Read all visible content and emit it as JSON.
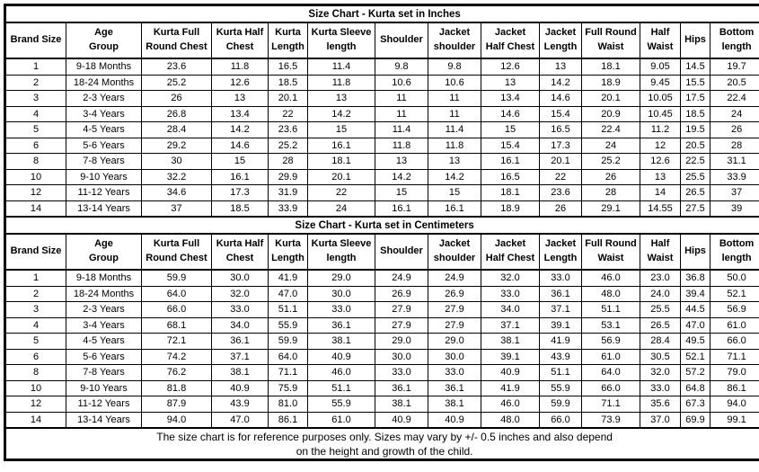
{
  "page": {
    "background_color": "#ffffff",
    "border_color": "#000000"
  },
  "tables": [
    {
      "id": "inches",
      "title": "Size Chart - Kurta set in Inches",
      "column_headers": [
        "Brand Size",
        "Age\nGroup",
        "Kurta Full\nRound Chest",
        "Kurta Half\nChest",
        "Kurta\nLength",
        "Kurta Sleeve\nlength",
        "Shoulder",
        "Jacket\nshoulder",
        "Jacket\nHalf Chest",
        "Jacket\nLength",
        "Full Round\nWaist",
        "Half\nWaist",
        "Hips",
        "Bottom\nlength"
      ],
      "rows": [
        [
          "1",
          "9-18 Months",
          "23.6",
          "11.8",
          "16.5",
          "11.4",
          "9.8",
          "9.8",
          "12.6",
          "13",
          "18.1",
          "9.05",
          "14.5",
          "19.7"
        ],
        [
          "2",
          "18-24 Months",
          "25.2",
          "12.6",
          "18.5",
          "11.8",
          "10.6",
          "10.6",
          "13",
          "14.2",
          "18.9",
          "9.45",
          "15.5",
          "20.5"
        ],
        [
          "3",
          "2-3 Years",
          "26",
          "13",
          "20.1",
          "13",
          "11",
          "11",
          "13.4",
          "14.6",
          "20.1",
          "10.05",
          "17.5",
          "22.4"
        ],
        [
          "4",
          "3-4 Years",
          "26.8",
          "13.4",
          "22",
          "14.2",
          "11",
          "11",
          "14.6",
          "15.4",
          "20.9",
          "10.45",
          "18.5",
          "24"
        ],
        [
          "5",
          "4-5 Years",
          "28.4",
          "14.2",
          "23.6",
          "15",
          "11.4",
          "11.4",
          "15",
          "16.5",
          "22.4",
          "11.2",
          "19.5",
          "26"
        ],
        [
          "6",
          "5-6 Years",
          "29.2",
          "14.6",
          "25.2",
          "16.1",
          "11.8",
          "11.8",
          "15.4",
          "17.3",
          "24",
          "12",
          "20.5",
          "28"
        ],
        [
          "8",
          "7-8 Years",
          "30",
          "15",
          "28",
          "18.1",
          "13",
          "13",
          "16.1",
          "20.1",
          "25.2",
          "12.6",
          "22.5",
          "31.1"
        ],
        [
          "10",
          "9-10 Years",
          "32.2",
          "16.1",
          "29.9",
          "20.1",
          "14.2",
          "14.2",
          "16.5",
          "22",
          "26",
          "13",
          "25.5",
          "33.9"
        ],
        [
          "12",
          "11-12 Years",
          "34.6",
          "17.3",
          "31.9",
          "22",
          "15",
          "15",
          "18.1",
          "23.6",
          "28",
          "14",
          "26.5",
          "37"
        ],
        [
          "14",
          "13-14 Years",
          "37",
          "18.5",
          "33.9",
          "24",
          "16.1",
          "16.1",
          "18.9",
          "26",
          "29.1",
          "14.55",
          "27.5",
          "39"
        ]
      ]
    },
    {
      "id": "centimeters",
      "title": "Size Chart - Kurta set in Centimeters",
      "column_headers": [
        "Brand Size",
        "Age\nGroup",
        "Kurta Full\nRound Chest",
        "Kurta Half\nChest",
        "Kurta\nLength",
        "Kurta Sleeve\nlength",
        "Shoulder",
        "Jacket\nshoulder",
        "Jacket\nHalf Chest",
        "Jacket\nLength",
        "Full Round\nWaist",
        "Half\nWaist",
        "Hips",
        "Bottom\nlength"
      ],
      "rows": [
        [
          "1",
          "9-18 Months",
          "59.9",
          "30.0",
          "41.9",
          "29.0",
          "24.9",
          "24.9",
          "32.0",
          "33.0",
          "46.0",
          "23.0",
          "36.8",
          "50.0"
        ],
        [
          "2",
          "18-24 Months",
          "64.0",
          "32.0",
          "47.0",
          "30.0",
          "26.9",
          "26.9",
          "33.0",
          "36.1",
          "48.0",
          "24.0",
          "39.4",
          "52.1"
        ],
        [
          "3",
          "2-3 Years",
          "66.0",
          "33.0",
          "51.1",
          "33.0",
          "27.9",
          "27.9",
          "34.0",
          "37.1",
          "51.1",
          "25.5",
          "44.5",
          "56.9"
        ],
        [
          "4",
          "3-4 Years",
          "68.1",
          "34.0",
          "55.9",
          "36.1",
          "27.9",
          "27.9",
          "37.1",
          "39.1",
          "53.1",
          "26.5",
          "47.0",
          "61.0"
        ],
        [
          "5",
          "4-5 Years",
          "72.1",
          "36.1",
          "59.9",
          "38.1",
          "29.0",
          "29.0",
          "38.1",
          "41.9",
          "56.9",
          "28.4",
          "49.5",
          "66.0"
        ],
        [
          "6",
          "5-6 Years",
          "74.2",
          "37.1",
          "64.0",
          "40.9",
          "30.0",
          "30.0",
          "39.1",
          "43.9",
          "61.0",
          "30.5",
          "52.1",
          "71.1"
        ],
        [
          "8",
          "7-8 Years",
          "76.2",
          "38.1",
          "71.1",
          "46.0",
          "33.0",
          "33.0",
          "40.9",
          "51.1",
          "64.0",
          "32.0",
          "57.2",
          "79.0"
        ],
        [
          "10",
          "9-10 Years",
          "81.8",
          "40.9",
          "75.9",
          "51.1",
          "36.1",
          "36.1",
          "41.9",
          "55.9",
          "66.0",
          "33.0",
          "64.8",
          "86.1"
        ],
        [
          "12",
          "11-12 Years",
          "87.9",
          "43.9",
          "81.0",
          "55.9",
          "38.1",
          "38.1",
          "46.0",
          "59.9",
          "71.1",
          "35.6",
          "67.3",
          "94.0"
        ],
        [
          "14",
          "13-14 Years",
          "94.0",
          "47.0",
          "86.1",
          "61.0",
          "40.9",
          "40.9",
          "48.0",
          "66.0",
          "73.9",
          "37.0",
          "69.9",
          "99.1"
        ]
      ]
    }
  ],
  "footer": {
    "line1": "The size chart is for reference purposes only. Sizes may vary by +/- 0.5 inches and also depend",
    "line2": "on the height and growth of the child."
  }
}
